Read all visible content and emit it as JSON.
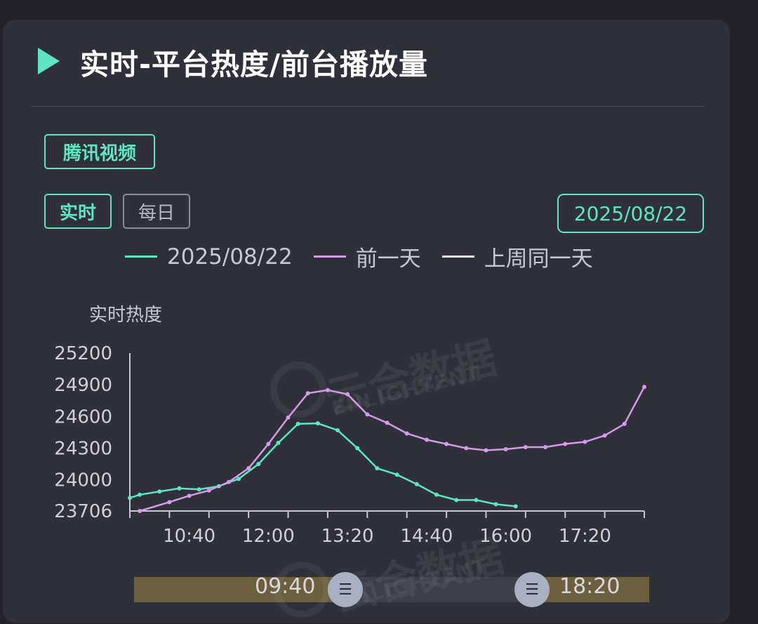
{
  "header": {
    "title": "实时-平台热度/前台播放量"
  },
  "platform": {
    "label": "腾讯视频"
  },
  "tabs": [
    {
      "label": "实时"
    },
    {
      "label": "每日"
    }
  ],
  "date_button": {
    "label": "2025/08/22"
  },
  "colors": {
    "accent": "#5ee6c3",
    "prev_day": "#d59ae8",
    "last_week": "#e8e8ee"
  },
  "watermark": {
    "cn": "云合数据",
    "en": "ENLIGHTENT"
  },
  "slider": {
    "start_label": "09:40",
    "end_label": "18:20",
    "handle_icon": "drag-handle-icon"
  },
  "chart_data": {
    "type": "line",
    "ylabel": "实时热度",
    "ylim": [
      23706,
      25200
    ],
    "yticks": [
      23706,
      24000,
      24300,
      24600,
      24900,
      25200
    ],
    "xlim": [
      "09:40",
      "18:20"
    ],
    "xticks": [
      "10:40",
      "12:00",
      "13:20",
      "14:40",
      "16:00",
      "17:20"
    ],
    "legend_placement": "top",
    "series": [
      {
        "name": "2025/08/22",
        "color": "#5ee6c3",
        "x": [
          "09:40",
          "09:50",
          "10:10",
          "10:30",
          "10:50",
          "11:10",
          "11:30",
          "11:50",
          "12:10",
          "12:30",
          "12:50",
          "13:10",
          "13:30",
          "13:50",
          "14:10",
          "14:30",
          "14:50",
          "15:10",
          "15:30",
          "15:50",
          "16:10"
        ],
        "values": [
          23830,
          23860,
          23890,
          23920,
          23910,
          23940,
          24010,
          24150,
          24350,
          24530,
          24535,
          24470,
          24300,
          24110,
          24050,
          23960,
          23860,
          23810,
          23810,
          23770,
          23750
        ]
      },
      {
        "name": "前一天",
        "color": "#d59ae8",
        "x": [
          "09:50",
          "10:20",
          "10:40",
          "11:00",
          "11:20",
          "11:40",
          "12:00",
          "12:20",
          "12:40",
          "13:00",
          "13:20",
          "13:40",
          "14:00",
          "14:20",
          "14:40",
          "15:00",
          "15:20",
          "15:40",
          "16:00",
          "16:20",
          "16:40",
          "17:00",
          "17:20",
          "17:40",
          "18:00",
          "18:20"
        ],
        "values": [
          23706,
          23790,
          23850,
          23900,
          23980,
          24110,
          24340,
          24590,
          24820,
          24850,
          24810,
          24620,
          24540,
          24440,
          24380,
          24340,
          24300,
          24280,
          24290,
          24310,
          24310,
          24340,
          24360,
          24420,
          24530,
          24880
        ]
      },
      {
        "name": "上周同一天",
        "color": "#e8e8ee",
        "x": [],
        "values": []
      }
    ]
  }
}
